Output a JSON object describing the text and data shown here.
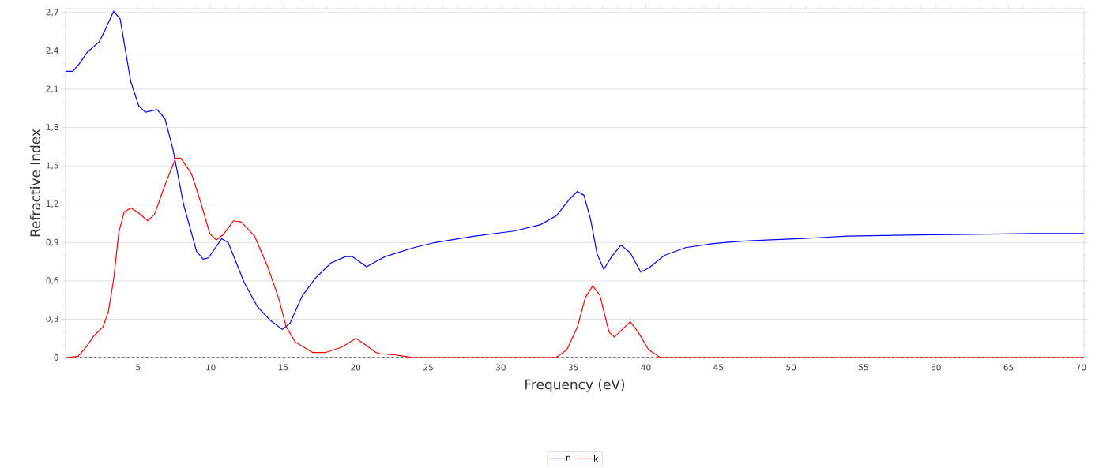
{
  "chart_data": {
    "type": "line",
    "xlabel": "Frequency (eV)",
    "ylabel": "Refractive Index",
    "xlim": [
      0,
      70.2
    ],
    "ylim": [
      0,
      2.73
    ],
    "xticks": [
      5,
      10,
      15,
      20,
      25,
      30,
      35,
      40,
      45,
      50,
      55,
      60,
      65,
      70
    ],
    "yticks": [
      {
        "value": 0,
        "label": "0"
      },
      {
        "value": 0.3,
        "label": "0,3"
      },
      {
        "value": 0.6,
        "label": "0,6"
      },
      {
        "value": 0.9,
        "label": "0,9"
      },
      {
        "value": 1.2,
        "label": "1,2"
      },
      {
        "value": 1.5,
        "label": "1,5"
      },
      {
        "value": 1.8,
        "label": "1,8"
      },
      {
        "value": 2.1,
        "label": "2,1"
      },
      {
        "value": 2.4,
        "label": "2,4"
      },
      {
        "value": 2.7,
        "label": "2,7"
      }
    ],
    "grid": "y",
    "legend": "bottom",
    "marker": "none",
    "line_style": "solid",
    "ref_lines": [
      {
        "axis": "y",
        "value": 0,
        "label": null,
        "color": "#000000",
        "line_style": "dashed"
      }
    ],
    "series": [
      {
        "name": "n",
        "color": "#0000ff",
        "x": [
          0.02,
          0.5,
          0.95,
          1.5,
          2.31,
          2.67,
          3.31,
          3.76,
          4.49,
          5.04,
          5.49,
          6.31,
          6.85,
          7.4,
          8.13,
          9.03,
          9.49,
          9.85,
          10.76,
          11.21,
          12.3,
          13.21,
          14.12,
          14.94,
          15.48,
          16.3,
          17.21,
          18.29,
          19.3,
          19.75,
          20.75,
          21.38,
          22.02,
          24.02,
          25.47,
          28.2,
          30.92,
          32.74,
          33.83,
          34.74,
          35.28,
          35.73,
          36.19,
          36.64,
          37.1,
          37.64,
          38.28,
          38.92,
          39.64,
          40.19,
          41.28,
          42.73,
          44.55,
          45.4,
          46.6,
          48.3,
          50.6,
          53.9,
          58.8,
          66.8,
          70.2
        ],
        "values": [
          2.24,
          2.24,
          2.3,
          2.39,
          2.47,
          2.55,
          2.71,
          2.65,
          2.16,
          1.97,
          1.92,
          1.94,
          1.87,
          1.63,
          1.2,
          0.83,
          0.77,
          0.78,
          0.93,
          0.9,
          0.59,
          0.4,
          0.29,
          0.22,
          0.27,
          0.48,
          0.62,
          0.74,
          0.79,
          0.79,
          0.71,
          0.75,
          0.79,
          0.86,
          0.9,
          0.95,
          0.99,
          1.04,
          1.11,
          1.24,
          1.3,
          1.27,
          1.08,
          0.81,
          0.69,
          0.79,
          0.88,
          0.82,
          0.67,
          0.7,
          0.8,
          0.86,
          0.89,
          0.9,
          0.91,
          0.92,
          0.93,
          0.95,
          0.96,
          0.97,
          0.97
        ]
      },
      {
        "name": "k",
        "color": "#ff0000",
        "x": [
          0.13,
          0.86,
          1.4,
          1.95,
          2.58,
          2.95,
          3.31,
          3.67,
          4.04,
          4.49,
          4.94,
          5.67,
          6.13,
          6.85,
          7.58,
          7.94,
          8.67,
          9.3,
          9.94,
          10.39,
          10.85,
          11.57,
          12.12,
          13.03,
          13.93,
          14.67,
          15.21,
          15.84,
          17.02,
          17.93,
          19.02,
          20.02,
          20.66,
          21.38,
          21.66,
          22.75,
          24.0,
          33.8,
          34.55,
          35.28,
          35.83,
          36.33,
          36.82,
          37.46,
          37.83,
          38.37,
          38.92,
          39.46,
          40.19,
          41.0,
          70.2
        ],
        "values": [
          0,
          0.01,
          0.08,
          0.17,
          0.24,
          0.36,
          0.61,
          0.98,
          1.14,
          1.17,
          1.14,
          1.07,
          1.12,
          1.35,
          1.56,
          1.56,
          1.44,
          1.22,
          0.97,
          0.92,
          0.96,
          1.07,
          1.06,
          0.95,
          0.71,
          0.47,
          0.24,
          0.12,
          0.04,
          0.04,
          0.08,
          0.15,
          0.1,
          0.04,
          0.03,
          0.02,
          0,
          0,
          0.06,
          0.24,
          0.47,
          0.56,
          0.49,
          0.2,
          0.16,
          0.22,
          0.28,
          0.2,
          0.06,
          0,
          0
        ]
      }
    ]
  }
}
